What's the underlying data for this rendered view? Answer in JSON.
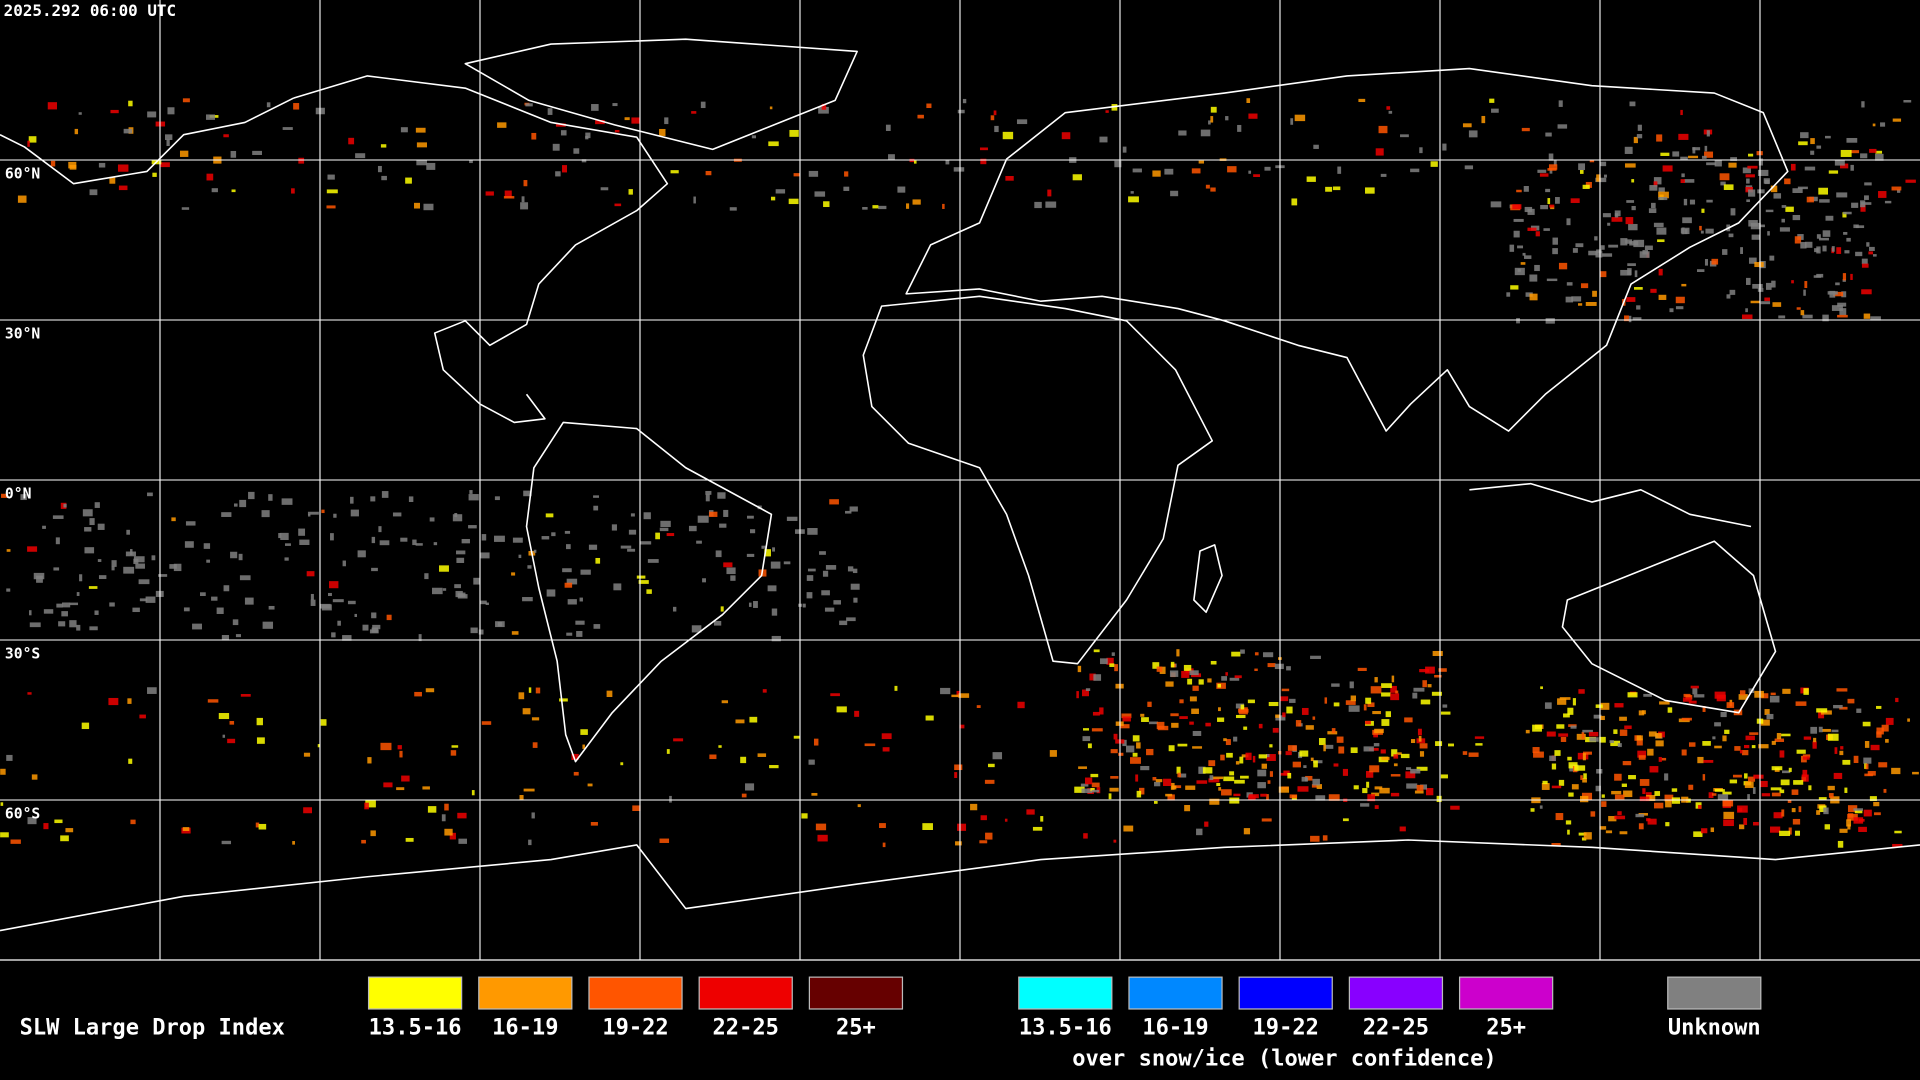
{
  "header": {
    "timestamp": "2025.292 06:00 UTC"
  },
  "map": {
    "lat_labels": [
      "60°N",
      "30°N",
      "0°N",
      "30°S",
      "60°S"
    ]
  },
  "legend": {
    "title": "SLW Large Drop Index",
    "items": [
      {
        "label": "13.5-16",
        "color": "#ffff00"
      },
      {
        "label": "16-19",
        "color": "#ff9900"
      },
      {
        "label": "19-22",
        "color": "#ff5500"
      },
      {
        "label": "22-25",
        "color": "#ee0000"
      },
      {
        "label": "25+",
        "color": "#660000"
      }
    ],
    "snow_items": [
      {
        "label": "13.5-16",
        "color": "#00ffff"
      },
      {
        "label": "16-19",
        "color": "#0088ff"
      },
      {
        "label": "19-22",
        "color": "#0000ff"
      },
      {
        "label": "22-25",
        "color": "#8800ff"
      },
      {
        "label": "25+",
        "color": "#cc00cc"
      }
    ],
    "snow_caption": "over snow/ice (lower confidence)",
    "unknown": {
      "label": "Unknown",
      "color": "#808080"
    }
  }
}
